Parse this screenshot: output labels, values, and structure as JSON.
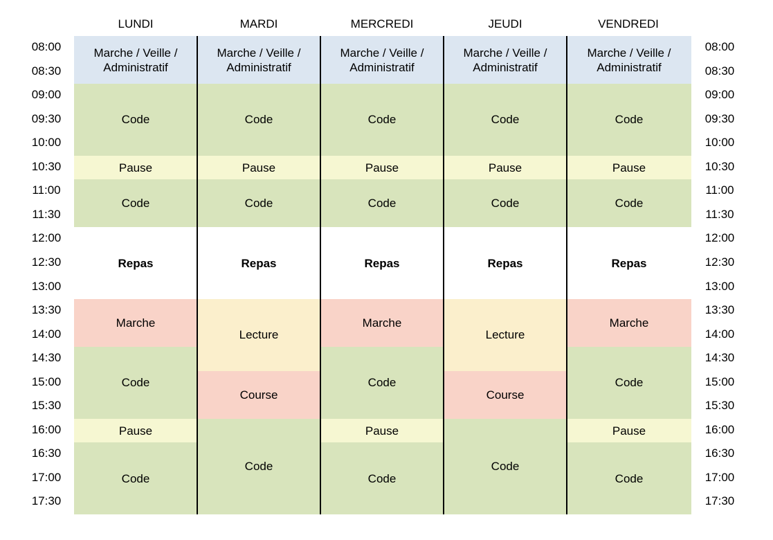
{
  "days": [
    "LUNDI",
    "MARDI",
    "MERCREDI",
    "JEUDI",
    "VENDREDI"
  ],
  "times": [
    "08:00",
    "08:30",
    "09:00",
    "09:30",
    "10:00",
    "10:30",
    "11:00",
    "11:30",
    "12:00",
    "12:30",
    "13:00",
    "13:30",
    "14:00",
    "14:30",
    "15:00",
    "15:30",
    "16:00",
    "16:30",
    "17:00",
    "17:30"
  ],
  "colors": {
    "admin": "#dce6f1",
    "code": "#d8e4bc",
    "pause": "#f6f7d2",
    "repas": "#ffffff",
    "marche": "#f9d3c8",
    "lecture": "#fbefcc",
    "course": "#f9d3c8"
  },
  "labels": {
    "admin": "Marche / Veille / Administratif",
    "code": "Code",
    "pause": "Pause",
    "repas": "Repas",
    "marche": "Marche",
    "lecture": "Lecture",
    "course": "Course"
  },
  "schedule": [
    [
      {
        "type": "admin",
        "start": 0,
        "span": 2
      },
      {
        "type": "code",
        "start": 2,
        "span": 3
      },
      {
        "type": "pause",
        "start": 5,
        "span": 1
      },
      {
        "type": "code",
        "start": 6,
        "span": 2
      },
      {
        "type": "repas",
        "start": 8,
        "span": 3
      },
      {
        "type": "marche",
        "start": 11,
        "span": 2
      },
      {
        "type": "code",
        "start": 13,
        "span": 3
      },
      {
        "type": "pause",
        "start": 16,
        "span": 1
      },
      {
        "type": "code",
        "start": 17,
        "span": 3
      }
    ],
    [
      {
        "type": "admin",
        "start": 0,
        "span": 2
      },
      {
        "type": "code",
        "start": 2,
        "span": 3
      },
      {
        "type": "pause",
        "start": 5,
        "span": 1
      },
      {
        "type": "code",
        "start": 6,
        "span": 2
      },
      {
        "type": "repas",
        "start": 8,
        "span": 3
      },
      {
        "type": "lecture",
        "start": 11,
        "span": 3
      },
      {
        "type": "course",
        "start": 14,
        "span": 2
      },
      {
        "type": "code",
        "start": 16,
        "span": 4
      }
    ],
    [
      {
        "type": "admin",
        "start": 0,
        "span": 2
      },
      {
        "type": "code",
        "start": 2,
        "span": 3
      },
      {
        "type": "pause",
        "start": 5,
        "span": 1
      },
      {
        "type": "code",
        "start": 6,
        "span": 2
      },
      {
        "type": "repas",
        "start": 8,
        "span": 3
      },
      {
        "type": "marche",
        "start": 11,
        "span": 2
      },
      {
        "type": "code",
        "start": 13,
        "span": 3
      },
      {
        "type": "pause",
        "start": 16,
        "span": 1
      },
      {
        "type": "code",
        "start": 17,
        "span": 3
      }
    ],
    [
      {
        "type": "admin",
        "start": 0,
        "span": 2
      },
      {
        "type": "code",
        "start": 2,
        "span": 3
      },
      {
        "type": "pause",
        "start": 5,
        "span": 1
      },
      {
        "type": "code",
        "start": 6,
        "span": 2
      },
      {
        "type": "repas",
        "start": 8,
        "span": 3
      },
      {
        "type": "lecture",
        "start": 11,
        "span": 3
      },
      {
        "type": "course",
        "start": 14,
        "span": 2
      },
      {
        "type": "code",
        "start": 16,
        "span": 4
      }
    ],
    [
      {
        "type": "admin",
        "start": 0,
        "span": 2
      },
      {
        "type": "code",
        "start": 2,
        "span": 3
      },
      {
        "type": "pause",
        "start": 5,
        "span": 1
      },
      {
        "type": "code",
        "start": 6,
        "span": 2
      },
      {
        "type": "repas",
        "start": 8,
        "span": 3
      },
      {
        "type": "marche",
        "start": 11,
        "span": 2
      },
      {
        "type": "code",
        "start": 13,
        "span": 3
      },
      {
        "type": "pause",
        "start": 16,
        "span": 1
      },
      {
        "type": "code",
        "start": 17,
        "span": 3
      }
    ]
  ]
}
